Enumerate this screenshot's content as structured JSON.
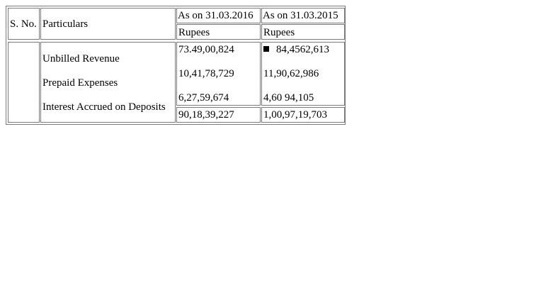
{
  "table": {
    "header": {
      "sno": "S. No.",
      "particulars": "Particulars",
      "col_2016": "As on 31.03.2016",
      "col_2015": "As on 31.03.2015",
      "unit_2016": "Rupees",
      "unit_2015": "Rupees"
    },
    "rows": [
      {
        "particular": "Unbilled Revenue",
        "val_2016": "73.49,00,824",
        "val_2015": "84,4562,613"
      },
      {
        "particular": "Prepaid Expenses",
        "val_2016": "10,41,78,729",
        "val_2015": "11,90,62,986"
      },
      {
        "particular": "Interest Accrued on Deposits",
        "val_2016": "6,27,59,674",
        "val_2015": "4,60 94,105"
      }
    ],
    "total": {
      "val_2016": "90,18,39,227",
      "val_2015": "1,00,97,19,703"
    }
  }
}
